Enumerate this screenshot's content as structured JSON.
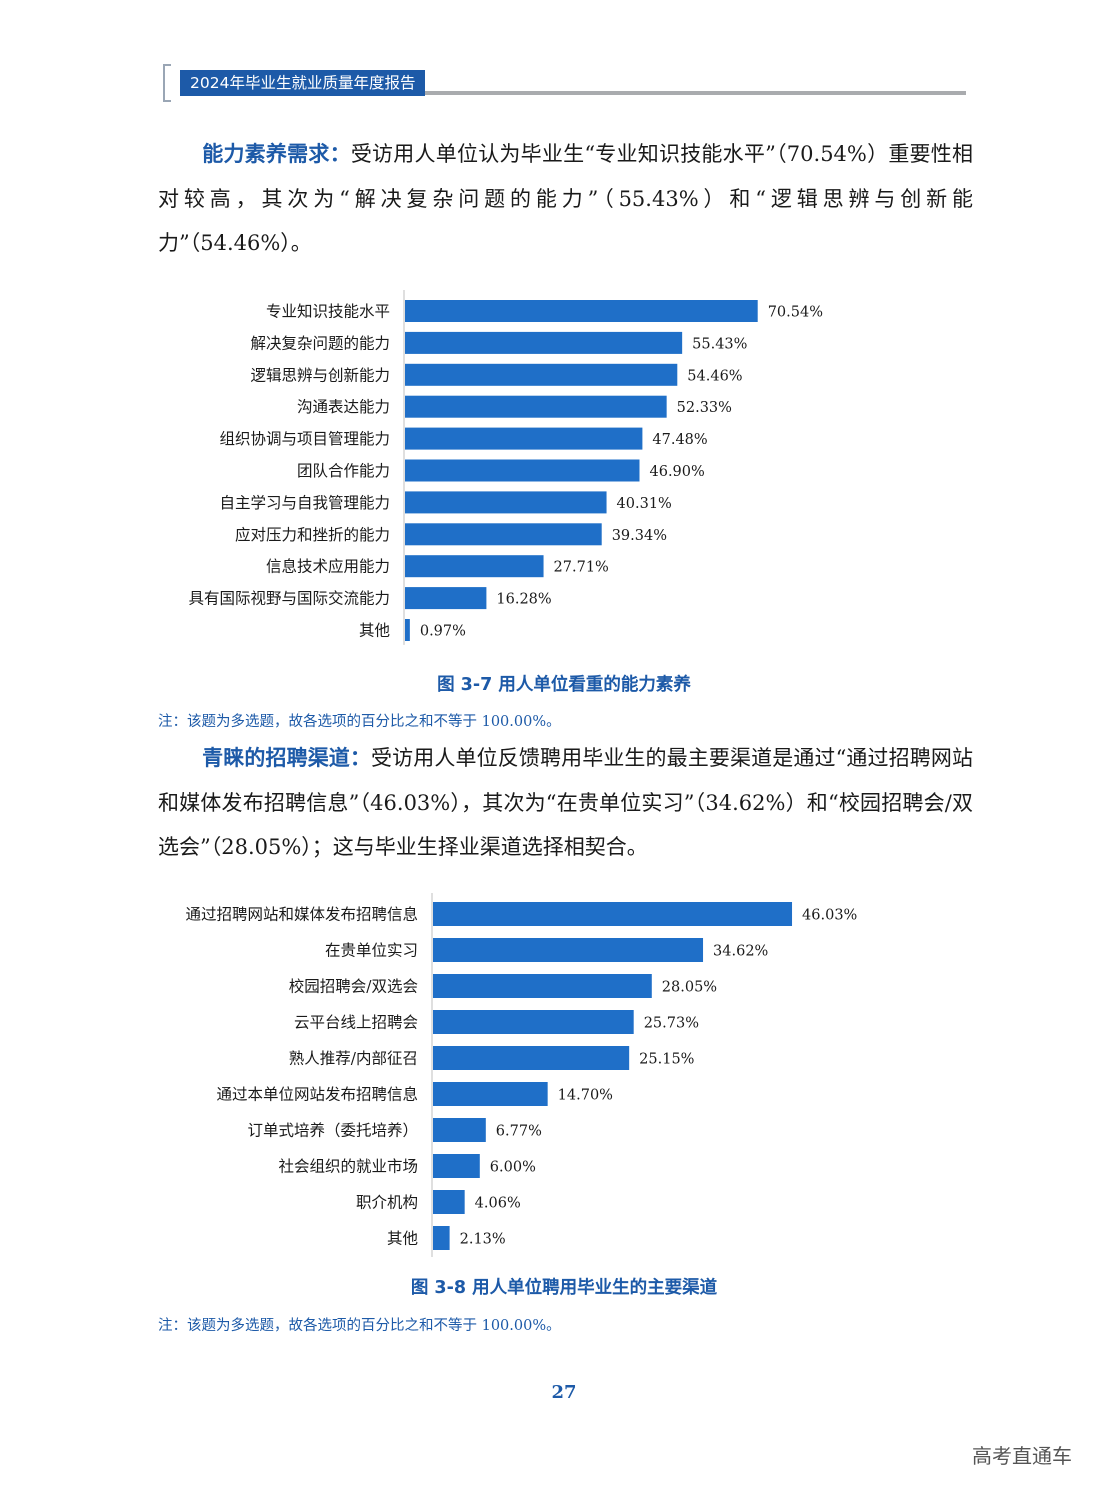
{
  "header": {
    "title": "2024年毕业生就业质量年度报告"
  },
  "section1": {
    "lead": "能力素养需求：",
    "text": "受访用人单位认为毕业生“专业知识技能水平”（70.54%）重要性相对较高，其次为“解决复杂问题的能力”（55.43%）和“逻辑思辨与创新能力”（54.46%）。"
  },
  "section2": {
    "lead": "青睐的招聘渠道：",
    "text": "受访用人单位反馈聘用毕业生的最主要渠道是通过“通过招聘网站和媒体发布招聘信息”（46.03%），其次为“在贵单位实习”（34.62%）和“校园招聘会/双选会”（28.05%）；这与毕业生择业渠道选择相契合。"
  },
  "chart_data": [
    {
      "type": "bar",
      "orientation": "horizontal",
      "title": "图 3-7  用人单位看重的能力素养",
      "note": "注：该题为多选题，故各选项的百分比之和不等于 100.00%。",
      "color": "#1f6fc8",
      "categories": [
        "专业知识技能水平",
        "解决复杂问题的能力",
        "逻辑思辨与创新能力",
        "沟通表达能力",
        "组织协调与项目管理能力",
        "团队合作能力",
        "自主学习与自我管理能力",
        "应对压力和挫折的能力",
        "信息技术应用能力",
        "具有国际视野与国际交流能力",
        "其他"
      ],
      "values": [
        70.54,
        55.43,
        54.46,
        52.33,
        47.48,
        46.9,
        40.31,
        39.34,
        27.71,
        16.28,
        0.97
      ],
      "labels": [
        "70.54%",
        "55.43%",
        "54.46%",
        "52.33%",
        "47.48%",
        "46.90%",
        "40.31%",
        "39.34%",
        "27.71%",
        "16.28%",
        "0.97%"
      ]
    },
    {
      "type": "bar",
      "orientation": "horizontal",
      "title": "图 3-8  用人单位聘用毕业生的主要渠道",
      "note": "注：该题为多选题，故各选项的百分比之和不等于 100.00%。",
      "color": "#1f6fc8",
      "categories": [
        "通过招聘网站和媒体发布招聘信息",
        "在贵单位实习",
        "校园招聘会/双选会",
        "云平台线上招聘会",
        "熟人推荐/内部征召",
        "通过本单位网站发布招聘信息",
        "订单式培养（委托培养）",
        "社会组织的就业市场",
        "职介机构",
        "其他"
      ],
      "values": [
        46.03,
        34.62,
        28.05,
        25.73,
        25.15,
        14.7,
        6.77,
        6.0,
        4.06,
        2.13
      ],
      "labels": [
        "46.03%",
        "34.62%",
        "28.05%",
        "25.73%",
        "25.15%",
        "14.70%",
        "6.77%",
        "6.00%",
        "4.06%",
        "2.13%"
      ]
    }
  ],
  "page_number": "27",
  "watermark": "高考直通车"
}
